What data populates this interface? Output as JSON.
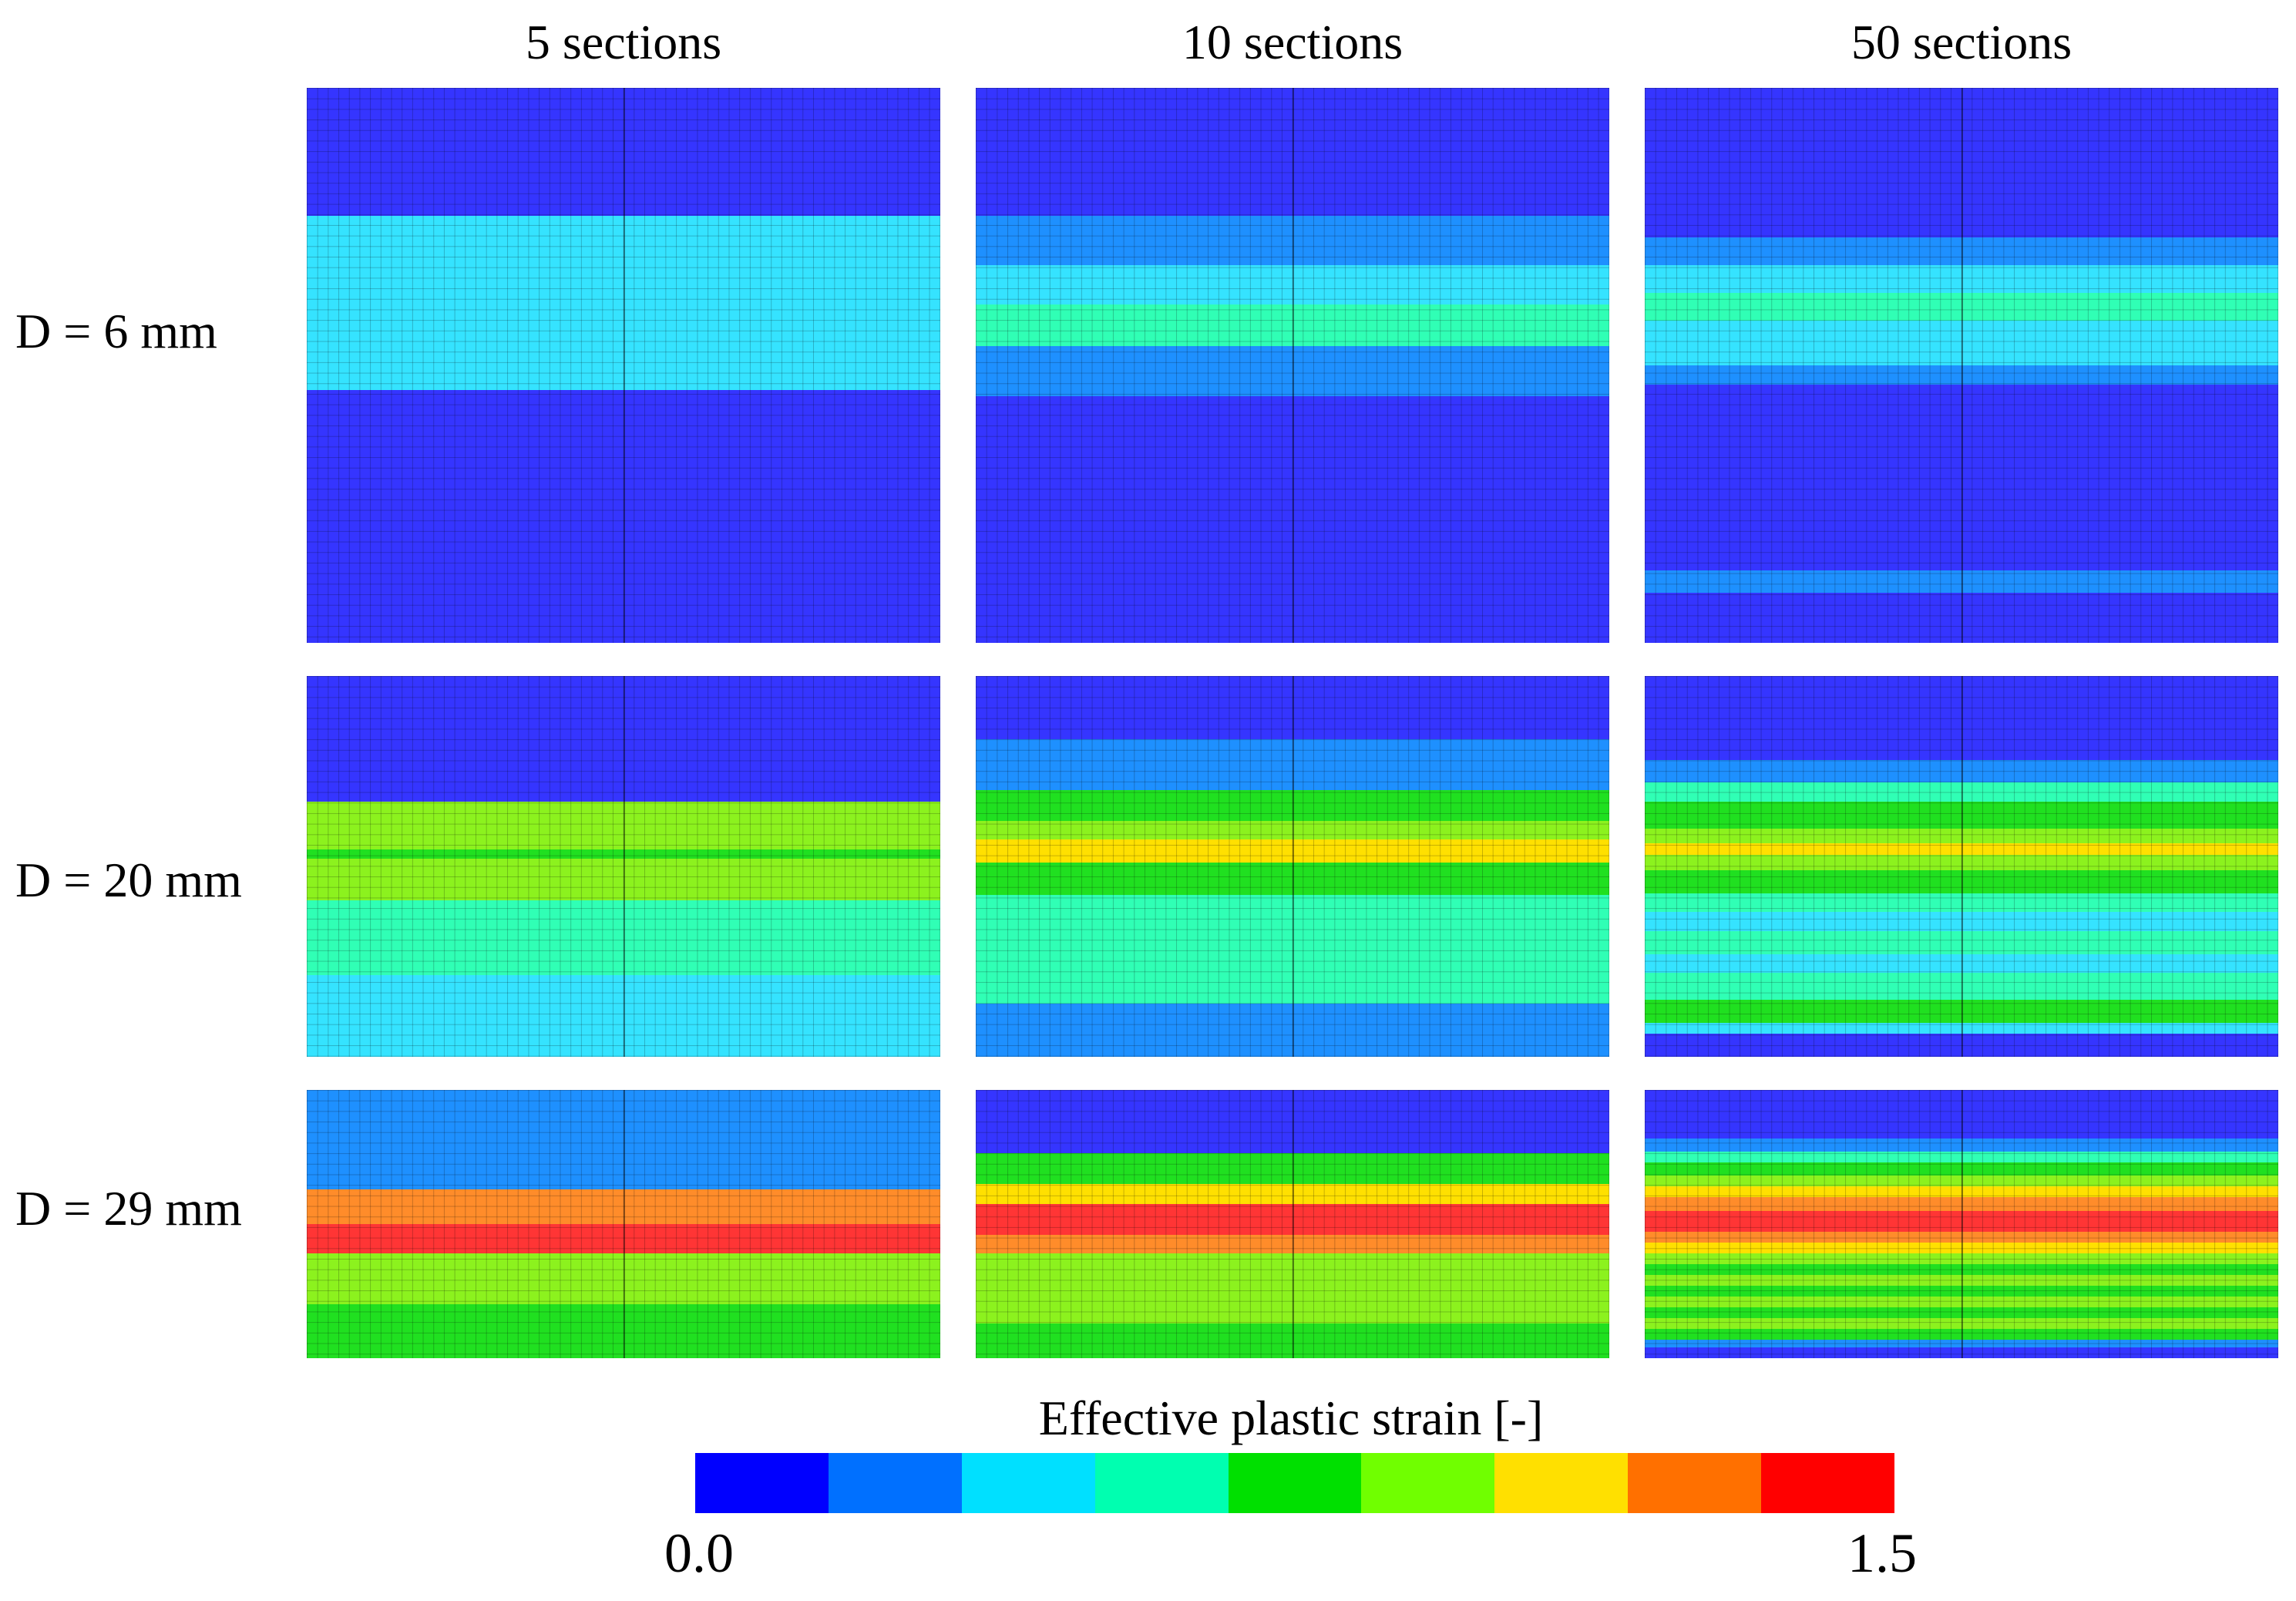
{
  "columns": [
    "5 sections",
    "10 sections",
    "50 sections"
  ],
  "rows": [
    "D = 6 mm",
    "D = 20 mm",
    "D = 29 mm"
  ],
  "legend": {
    "title": "Effective plastic strain [-]",
    "min_label": "0.0",
    "max_label": "1.5",
    "colors": [
      "#0000ff",
      "#0070ff",
      "#00e0ff",
      "#00ffb0",
      "#00e000",
      "#70ff00",
      "#ffe000",
      "#ff7000",
      "#ff0000"
    ]
  },
  "panels": [
    {
      "name": "d6-5sections",
      "row": 0,
      "col": 0,
      "bands": [
        {
          "y0": 0.0,
          "y1": 0.23,
          "color": "#3535ff"
        },
        {
          "y0": 0.23,
          "y1": 0.545,
          "color": "#35e3ff"
        },
        {
          "y0": 0.545,
          "y1": 1.0,
          "color": "#3535ff"
        }
      ]
    },
    {
      "name": "d6-10sections",
      "row": 0,
      "col": 1,
      "bands": [
        {
          "y0": 0.0,
          "y1": 0.23,
          "color": "#3535ff"
        },
        {
          "y0": 0.23,
          "y1": 0.32,
          "color": "#1e90ff"
        },
        {
          "y0": 0.32,
          "y1": 0.39,
          "color": "#35e3ff"
        },
        {
          "y0": 0.39,
          "y1": 0.465,
          "color": "#30ffb5"
        },
        {
          "y0": 0.465,
          "y1": 0.555,
          "color": "#1e90ff"
        },
        {
          "y0": 0.555,
          "y1": 1.0,
          "color": "#3535ff"
        }
      ]
    },
    {
      "name": "d6-50sections",
      "row": 0,
      "col": 2,
      "bands": [
        {
          "y0": 0.0,
          "y1": 0.27,
          "color": "#3535ff"
        },
        {
          "y0": 0.27,
          "y1": 0.32,
          "color": "#1e90ff"
        },
        {
          "y0": 0.32,
          "y1": 0.37,
          "color": "#35e3ff"
        },
        {
          "y0": 0.37,
          "y1": 0.42,
          "color": "#30ffb5"
        },
        {
          "y0": 0.42,
          "y1": 0.5,
          "color": "#35e3ff"
        },
        {
          "y0": 0.5,
          "y1": 0.535,
          "color": "#1e90ff"
        },
        {
          "y0": 0.535,
          "y1": 0.87,
          "color": "#3535ff"
        },
        {
          "y0": 0.87,
          "y1": 0.91,
          "color": "#1e90ff"
        },
        {
          "y0": 0.91,
          "y1": 1.0,
          "color": "#3535ff"
        }
      ]
    },
    {
      "name": "d20-5sections",
      "row": 1,
      "col": 0,
      "bands": [
        {
          "y0": 0.0,
          "y1": 0.33,
          "color": "#3535ff"
        },
        {
          "y0": 0.33,
          "y1": 0.455,
          "color": "#8cf21e"
        },
        {
          "y0": 0.455,
          "y1": 0.48,
          "color": "#20e020"
        },
        {
          "y0": 0.48,
          "y1": 0.59,
          "color": "#8cf21e"
        },
        {
          "y0": 0.59,
          "y1": 0.785,
          "color": "#30ffb5"
        },
        {
          "y0": 0.785,
          "y1": 1.0,
          "color": "#35e3ff"
        }
      ]
    },
    {
      "name": "d20-10sections",
      "row": 1,
      "col": 1,
      "bands": [
        {
          "y0": 0.0,
          "y1": 0.165,
          "color": "#3535ff"
        },
        {
          "y0": 0.165,
          "y1": 0.3,
          "color": "#1e90ff"
        },
        {
          "y0": 0.3,
          "y1": 0.38,
          "color": "#20e020"
        },
        {
          "y0": 0.38,
          "y1": 0.43,
          "color": "#8cf21e"
        },
        {
          "y0": 0.43,
          "y1": 0.49,
          "color": "#ffe000"
        },
        {
          "y0": 0.49,
          "y1": 0.575,
          "color": "#20e020"
        },
        {
          "y0": 0.575,
          "y1": 0.86,
          "color": "#30ffb5"
        },
        {
          "y0": 0.86,
          "y1": 1.0,
          "color": "#1e90ff"
        }
      ]
    },
    {
      "name": "d20-50sections",
      "row": 1,
      "col": 2,
      "bands": [
        {
          "y0": 0.0,
          "y1": 0.22,
          "color": "#3535ff"
        },
        {
          "y0": 0.22,
          "y1": 0.28,
          "color": "#1e90ff"
        },
        {
          "y0": 0.28,
          "y1": 0.33,
          "color": "#30ffb5"
        },
        {
          "y0": 0.33,
          "y1": 0.4,
          "color": "#20e020"
        },
        {
          "y0": 0.4,
          "y1": 0.44,
          "color": "#8cf21e"
        },
        {
          "y0": 0.44,
          "y1": 0.47,
          "color": "#ffe000"
        },
        {
          "y0": 0.47,
          "y1": 0.51,
          "color": "#8cf21e"
        },
        {
          "y0": 0.51,
          "y1": 0.57,
          "color": "#20e020"
        },
        {
          "y0": 0.57,
          "y1": 0.62,
          "color": "#30ffb5"
        },
        {
          "y0": 0.62,
          "y1": 0.67,
          "color": "#35e3ff"
        },
        {
          "y0": 0.67,
          "y1": 0.73,
          "color": "#30ffb5"
        },
        {
          "y0": 0.73,
          "y1": 0.78,
          "color": "#35e3ff"
        },
        {
          "y0": 0.78,
          "y1": 0.85,
          "color": "#30ffb5"
        },
        {
          "y0": 0.85,
          "y1": 0.91,
          "color": "#20e020"
        },
        {
          "y0": 0.91,
          "y1": 0.94,
          "color": "#35e3ff"
        },
        {
          "y0": 0.94,
          "y1": 1.0,
          "color": "#3535ff"
        }
      ]
    },
    {
      "name": "d29-5sections",
      "row": 2,
      "col": 0,
      "bands": [
        {
          "y0": 0.0,
          "y1": 0.37,
          "color": "#1e90ff"
        },
        {
          "y0": 0.37,
          "y1": 0.5,
          "color": "#ff8c2a"
        },
        {
          "y0": 0.5,
          "y1": 0.61,
          "color": "#ff3535"
        },
        {
          "y0": 0.61,
          "y1": 0.8,
          "color": "#8cf21e"
        },
        {
          "y0": 0.8,
          "y1": 1.0,
          "color": "#20e020"
        }
      ]
    },
    {
      "name": "d29-10sections",
      "row": 2,
      "col": 1,
      "bands": [
        {
          "y0": 0.0,
          "y1": 0.235,
          "color": "#3535ff"
        },
        {
          "y0": 0.235,
          "y1": 0.35,
          "color": "#20e020"
        },
        {
          "y0": 0.35,
          "y1": 0.425,
          "color": "#ffe000"
        },
        {
          "y0": 0.425,
          "y1": 0.54,
          "color": "#ff3535"
        },
        {
          "y0": 0.54,
          "y1": 0.61,
          "color": "#ff8c2a"
        },
        {
          "y0": 0.61,
          "y1": 0.87,
          "color": "#8cf21e"
        },
        {
          "y0": 0.87,
          "y1": 1.0,
          "color": "#20e020"
        }
      ]
    },
    {
      "name": "d29-50sections",
      "row": 2,
      "col": 2,
      "bands": [
        {
          "y0": 0.0,
          "y1": 0.18,
          "color": "#3535ff"
        },
        {
          "y0": 0.18,
          "y1": 0.23,
          "color": "#1e90ff"
        },
        {
          "y0": 0.23,
          "y1": 0.27,
          "color": "#30ffb5"
        },
        {
          "y0": 0.27,
          "y1": 0.32,
          "color": "#20e020"
        },
        {
          "y0": 0.32,
          "y1": 0.36,
          "color": "#8cf21e"
        },
        {
          "y0": 0.36,
          "y1": 0.4,
          "color": "#ffe000"
        },
        {
          "y0": 0.4,
          "y1": 0.45,
          "color": "#ff8c2a"
        },
        {
          "y0": 0.45,
          "y1": 0.53,
          "color": "#ff3535"
        },
        {
          "y0": 0.53,
          "y1": 0.57,
          "color": "#ff8c2a"
        },
        {
          "y0": 0.57,
          "y1": 0.61,
          "color": "#ffe000"
        },
        {
          "y0": 0.61,
          "y1": 0.65,
          "color": "#8cf21e"
        },
        {
          "y0": 0.65,
          "y1": 0.69,
          "color": "#20e020"
        },
        {
          "y0": 0.69,
          "y1": 0.73,
          "color": "#8cf21e"
        },
        {
          "y0": 0.73,
          "y1": 0.77,
          "color": "#20e020"
        },
        {
          "y0": 0.77,
          "y1": 0.81,
          "color": "#8cf21e"
        },
        {
          "y0": 0.81,
          "y1": 0.85,
          "color": "#20e020"
        },
        {
          "y0": 0.85,
          "y1": 0.89,
          "color": "#8cf21e"
        },
        {
          "y0": 0.89,
          "y1": 0.93,
          "color": "#20e020"
        },
        {
          "y0": 0.93,
          "y1": 0.96,
          "color": "#1e90ff"
        },
        {
          "y0": 0.96,
          "y1": 1.0,
          "color": "#3535ff"
        }
      ]
    }
  ]
}
